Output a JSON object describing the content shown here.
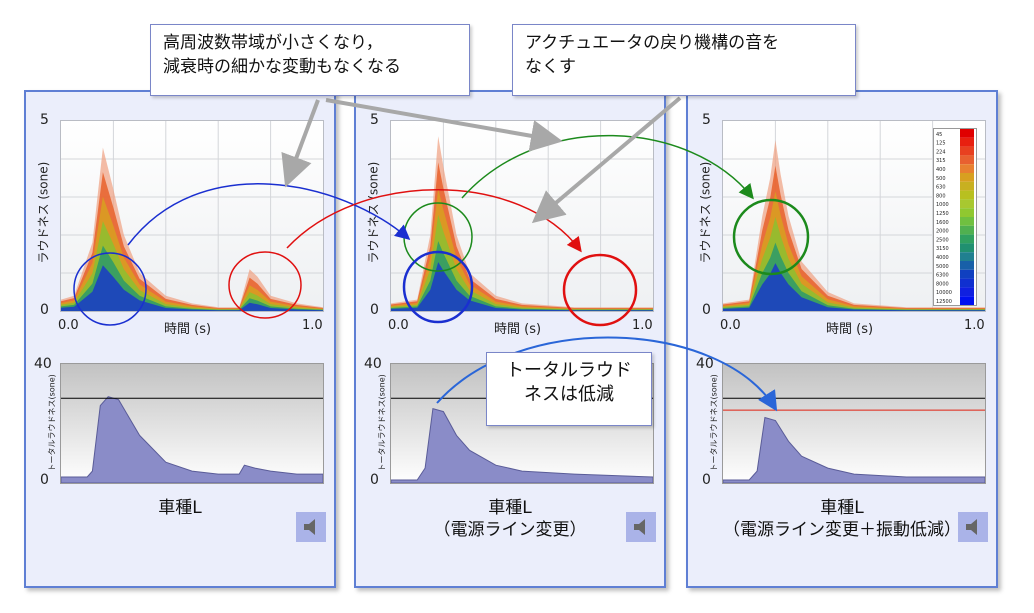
{
  "callouts": {
    "high_freq": [
      "高周波数帯域が小さくなり，",
      "減衰時の細かな変動もなくなる"
    ],
    "actuator": [
      "アクチュエータの戻り機構の音を",
      "なくす"
    ],
    "total": [
      "トータルラウド",
      "ネスは低減"
    ]
  },
  "panels": [
    {
      "caption_lines": [
        "車種L"
      ],
      "spectrogram": {
        "ylabel": "ラウドネス (sone)",
        "xlabel": "時間 (s)"
      },
      "total": {
        "ylabel": "トータルラウドネス(sone)"
      }
    },
    {
      "caption_lines": [
        "車種L",
        "（電源ライン変更）"
      ],
      "spectrogram": {
        "ylabel": "ラウドネス (sone)",
        "xlabel": "時間 (s)"
      },
      "total": {
        "ylabel": "トータルラウドネス(sone)"
      }
    },
    {
      "caption_lines": [
        "車種L",
        "（電源ライン変更＋振動低減）"
      ],
      "spectrogram": {
        "ylabel": "ラウドネス (sone)",
        "xlabel": "時間 (s)"
      },
      "total": {
        "ylabel": "トータルラウドネス(sone)"
      }
    }
  ],
  "chart_data": [
    {
      "type": "area",
      "panel": "車種L",
      "xlabel": "時間 (s)",
      "ylabel": "ラウドネス (sone)",
      "xlim": [
        0,
        1.0
      ],
      "ylim": [
        0,
        5
      ],
      "x_ticks": [
        "0.0",
        "1.0"
      ],
      "y_ticks": [
        "0",
        "5"
      ],
      "series": [
        {
          "x": [
            0,
            0.05,
            0.12,
            0.16,
            0.2,
            0.24,
            0.3,
            0.4,
            0.5,
            0.6,
            0.68,
            0.72,
            0.75,
            0.8,
            0.9,
            1.0
          ],
          "y": [
            0.3,
            0.4,
            1.8,
            4.3,
            3.2,
            2.0,
            1.0,
            0.4,
            0.2,
            0.1,
            0.1,
            1.1,
            0.9,
            0.4,
            0.2,
            0.1
          ]
        }
      ]
    },
    {
      "type": "area",
      "panel": "車種L",
      "xlabel": "",
      "ylabel": "トータルラウドネス(sone)",
      "ylim": [
        0,
        40
      ],
      "y_ticks": [
        "0",
        "40"
      ],
      "reference_line": 28.5,
      "series": [
        {
          "x": [
            0,
            0.1,
            0.12,
            0.15,
            0.18,
            0.22,
            0.3,
            0.4,
            0.5,
            0.6,
            0.68,
            0.7,
            0.74,
            0.8,
            0.9,
            1.0
          ],
          "y": [
            2,
            2,
            4,
            26,
            29,
            28,
            16,
            7,
            4,
            3,
            3,
            6,
            5,
            4,
            3,
            3
          ]
        }
      ]
    },
    {
      "type": "area",
      "panel": "車種L（電源ライン変更）",
      "xlabel": "時間 (s)",
      "ylabel": "ラウドネス (sone)",
      "xlim": [
        0,
        1.0
      ],
      "ylim": [
        0,
        5
      ],
      "x_ticks": [
        "0.0",
        "1.0"
      ],
      "y_ticks": [
        "0",
        "5"
      ],
      "series": [
        {
          "x": [
            0,
            0.1,
            0.15,
            0.18,
            0.2,
            0.25,
            0.3,
            0.4,
            0.5,
            0.7,
            0.8,
            1.0
          ],
          "y": [
            0.2,
            0.3,
            2.0,
            4.6,
            3.8,
            2.0,
            1.0,
            0.4,
            0.2,
            0.1,
            0.1,
            0.1
          ]
        }
      ]
    },
    {
      "type": "area",
      "panel": "車種L（電源ライン変更）",
      "xlabel": "",
      "ylabel": "トータルラウドネス(sone)",
      "ylim": [
        0,
        40
      ],
      "y_ticks": [
        "0",
        "40"
      ],
      "reference_line": 28.5,
      "series": [
        {
          "x": [
            0,
            0.1,
            0.13,
            0.16,
            0.2,
            0.25,
            0.3,
            0.4,
            0.5,
            0.7,
            1.0
          ],
          "y": [
            1,
            1,
            5,
            25,
            24,
            16,
            11,
            6,
            4,
            3,
            2
          ]
        }
      ]
    },
    {
      "type": "area",
      "panel": "車種L（電源ライン変更＋振動低減）",
      "xlabel": "時間 (s)",
      "ylabel": "ラウドネス (sone)",
      "xlim": [
        0,
        1.0
      ],
      "ylim": [
        0,
        5
      ],
      "x_ticks": [
        "0.0",
        "1.0"
      ],
      "y_ticks": [
        "0",
        "5"
      ],
      "legend_labels": [
        "45",
        "125",
        "224",
        "315",
        "400",
        "500",
        "630",
        "800",
        "1000",
        "1250",
        "1600",
        "2000",
        "2500",
        "3150",
        "4000",
        "5000",
        "6300",
        "8000",
        "10000",
        "12500"
      ],
      "series": [
        {
          "x": [
            0,
            0.1,
            0.15,
            0.18,
            0.2,
            0.22,
            0.25,
            0.3,
            0.4,
            0.5,
            0.7,
            1.0
          ],
          "y": [
            0.2,
            0.3,
            2.5,
            3.5,
            4.5,
            3.6,
            2.5,
            1.3,
            0.5,
            0.2,
            0.1,
            0.1
          ]
        }
      ]
    },
    {
      "type": "area",
      "panel": "車種L（電源ライン変更＋振動低減）",
      "xlabel": "",
      "ylabel": "トータルラウドネス(sone)",
      "ylim": [
        0,
        40
      ],
      "y_ticks": [
        "0",
        "40"
      ],
      "reference_lines": [
        {
          "value": 28.5,
          "color": "#000000"
        },
        {
          "value": 24.5,
          "color": "#e02010"
        }
      ],
      "series": [
        {
          "x": [
            0,
            0.1,
            0.13,
            0.16,
            0.2,
            0.25,
            0.3,
            0.4,
            0.5,
            0.7,
            1.0
          ],
          "y": [
            1,
            1,
            4,
            22,
            21,
            14,
            9,
            5,
            3,
            2,
            2
          ]
        }
      ]
    }
  ],
  "colors": {
    "panel_bg": "#ebeefb",
    "panel_border": "#5f7fd4",
    "arrow_blue": "#1a2fd0",
    "arrow_red": "#e01010",
    "arrow_green": "#1c8a1c",
    "arrow_gray": "#a8a8a8"
  }
}
